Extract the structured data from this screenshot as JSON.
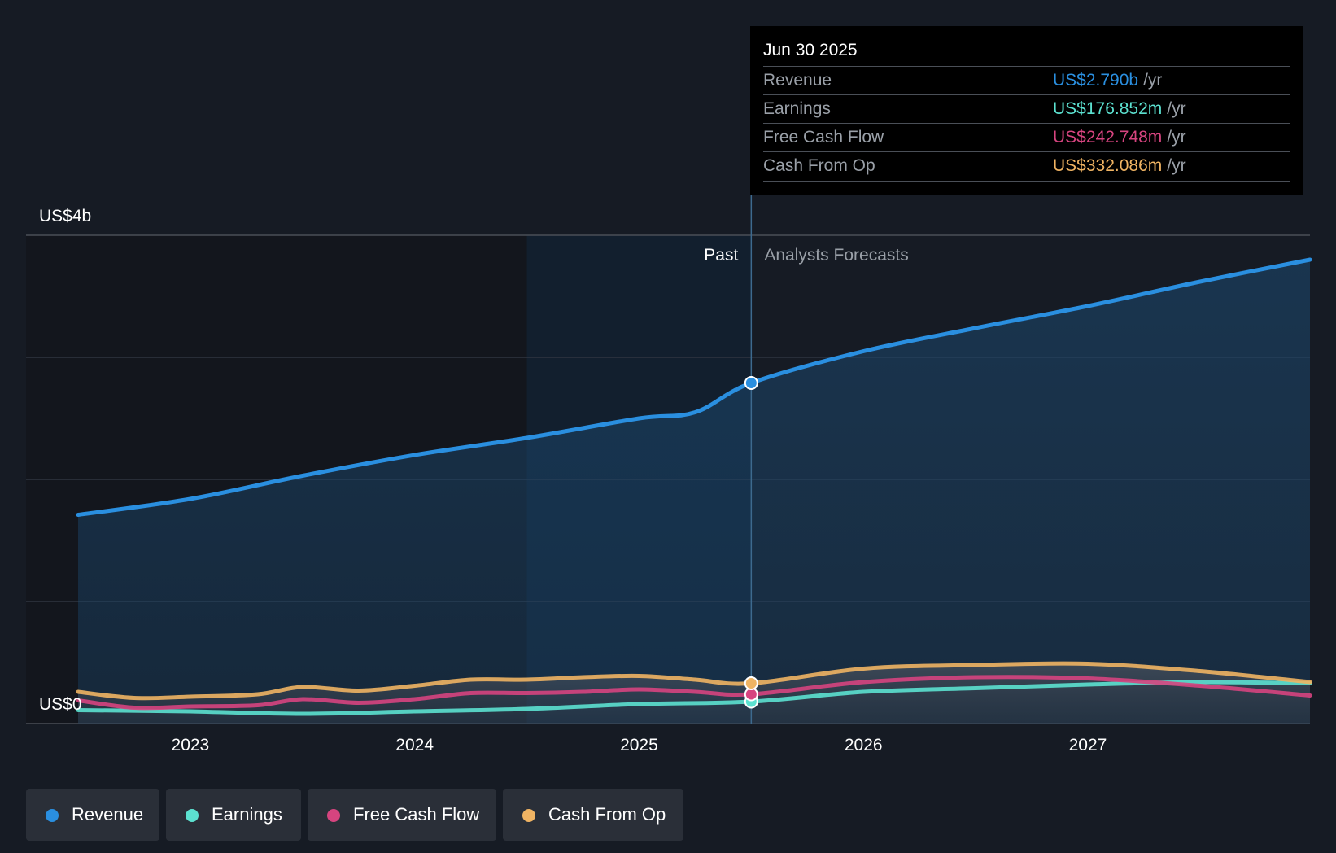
{
  "chart_data": {
    "type": "area",
    "y_axis": {
      "top_label": "US$4b",
      "bottom_label": "US$0",
      "ylim": [
        0,
        4
      ]
    },
    "x_axis": {
      "ticks": [
        "2023",
        "2024",
        "2025",
        "2026",
        "2027"
      ],
      "tick_values": [
        2023,
        2024,
        2025,
        2026,
        2027
      ],
      "xlim": [
        2022.5,
        2027.99
      ]
    },
    "past_label": "Past",
    "forecast_label": "Analysts Forecasts",
    "divider_x": 2025.5,
    "highlight_start_x": 2024.5,
    "series": [
      {
        "name": "Revenue",
        "color": "#2a8fe0",
        "x": [
          2022.5,
          2023.0,
          2023.5,
          2024.0,
          2024.5,
          2025.0,
          2025.25,
          2025.5,
          2026.0,
          2026.5,
          2027.0,
          2027.5,
          2027.99
        ],
        "values": [
          1.71,
          1.84,
          2.03,
          2.2,
          2.34,
          2.5,
          2.55,
          2.79,
          3.05,
          3.24,
          3.42,
          3.62,
          3.8
        ]
      },
      {
        "name": "Earnings",
        "color": "#5ce1d0",
        "x": [
          2022.5,
          2023.0,
          2023.5,
          2024.0,
          2024.5,
          2025.0,
          2025.5,
          2026.0,
          2026.5,
          2027.0,
          2027.5,
          2027.99
        ],
        "values": [
          0.11,
          0.1,
          0.08,
          0.1,
          0.12,
          0.16,
          0.18,
          0.26,
          0.29,
          0.32,
          0.34,
          0.33
        ]
      },
      {
        "name": "Free Cash Flow",
        "color": "#d6447f",
        "x": [
          2022.5,
          2022.75,
          2023.0,
          2023.3,
          2023.5,
          2023.75,
          2024.0,
          2024.25,
          2024.5,
          2024.75,
          2025.0,
          2025.25,
          2025.5,
          2026.0,
          2026.5,
          2027.0,
          2027.5,
          2027.99
        ],
        "values": [
          0.19,
          0.13,
          0.14,
          0.15,
          0.2,
          0.17,
          0.2,
          0.25,
          0.25,
          0.26,
          0.28,
          0.26,
          0.24,
          0.34,
          0.38,
          0.37,
          0.31,
          0.23
        ]
      },
      {
        "name": "Cash From Op",
        "color": "#f0b463",
        "x": [
          2022.5,
          2022.75,
          2023.0,
          2023.3,
          2023.5,
          2023.75,
          2024.0,
          2024.25,
          2024.5,
          2024.75,
          2025.0,
          2025.25,
          2025.5,
          2026.0,
          2026.5,
          2027.0,
          2027.5,
          2027.99
        ],
        "values": [
          0.26,
          0.21,
          0.22,
          0.24,
          0.3,
          0.27,
          0.31,
          0.36,
          0.36,
          0.38,
          0.39,
          0.36,
          0.33,
          0.45,
          0.48,
          0.49,
          0.43,
          0.34
        ]
      }
    ],
    "markers": {
      "x": 2025.5,
      "values": {
        "Revenue": 2.79,
        "Earnings": 0.18,
        "Free Cash Flow": 0.24,
        "Cash From Op": 0.33
      }
    }
  },
  "tooltip": {
    "date": "Jun 30 2025",
    "unit": "/yr",
    "rows": [
      {
        "label": "Revenue",
        "value": "US$2.790b",
        "color": "#2a8fe0"
      },
      {
        "label": "Earnings",
        "value": "US$176.852m",
        "color": "#5ce1d0"
      },
      {
        "label": "Free Cash Flow",
        "value": "US$242.748m",
        "color": "#d6447f"
      },
      {
        "label": "Cash From Op",
        "value": "US$332.086m",
        "color": "#f0b463"
      }
    ]
  },
  "legend": [
    {
      "label": "Revenue",
      "color": "#2a8fe0"
    },
    {
      "label": "Earnings",
      "color": "#5ce1d0"
    },
    {
      "label": "Free Cash Flow",
      "color": "#d6447f"
    },
    {
      "label": "Cash From Op",
      "color": "#f0b463"
    }
  ]
}
